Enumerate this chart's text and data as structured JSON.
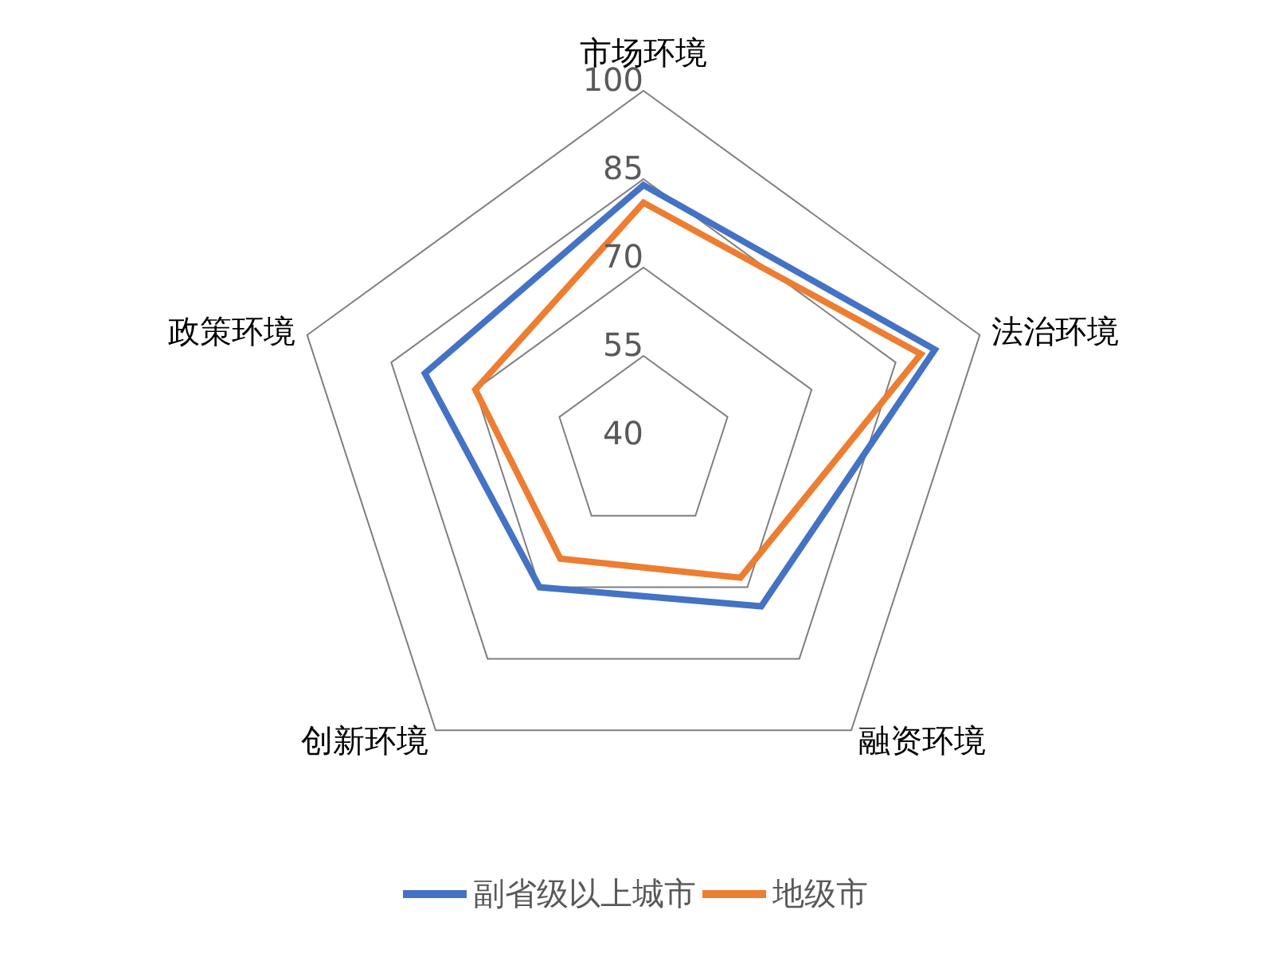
{
  "chart_data": {
    "type": "radar",
    "categories": [
      "市场环境",
      "法治环境",
      "融资环境",
      "创新环境",
      "政策环境"
    ],
    "series": [
      {
        "name": "副省级以上城市",
        "color": "#4472c4",
        "values": [
          84,
          92,
          74,
          70,
          79
        ]
      },
      {
        "name": "地级市",
        "color": "#ed7d31",
        "values": [
          81,
          89.5,
          68,
          64,
          70
        ]
      }
    ],
    "ylim": [
      40,
      100
    ],
    "yticks": [
      40,
      55,
      70,
      85,
      100
    ],
    "grid": true,
    "legend": "bottom"
  }
}
